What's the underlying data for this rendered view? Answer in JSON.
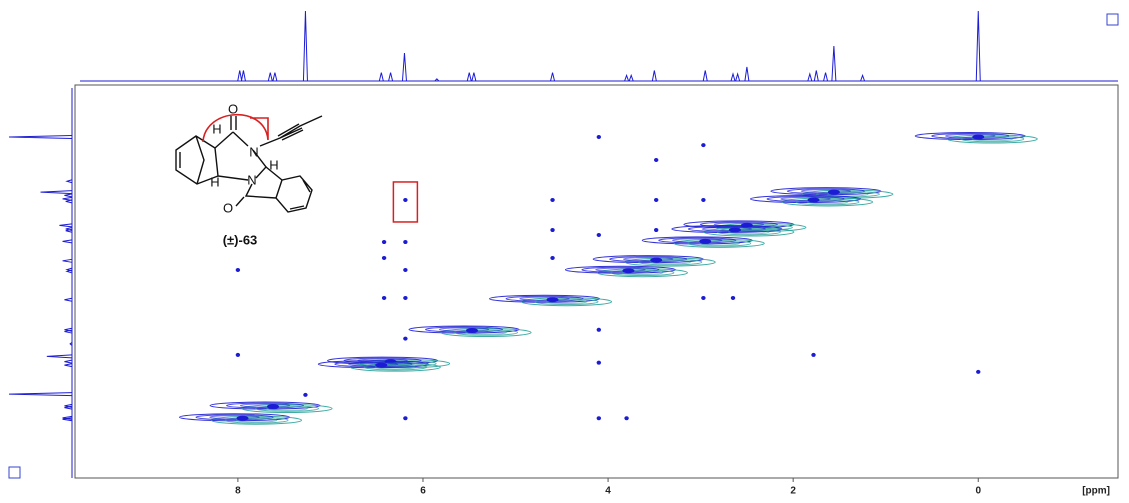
{
  "chart_data": {
    "type": "nmr2d",
    "xlim": [
      9.76,
      -1.51
    ],
    "ylim": [
      -1.47,
      9.64
    ],
    "xticks": [
      8,
      6,
      4,
      2,
      0
    ],
    "x_label": "[ppm]",
    "color": "#1c1cd4",
    "color2": "#2aa39c",
    "highlight_color": "#d92020",
    "diagonal": [
      0,
      1.56,
      1.78,
      2.5,
      2.63,
      2.95,
      3.48,
      3.78,
      4.6,
      5.47,
      6.35,
      6.45,
      7.62,
      7.95
    ],
    "cross_peaks": {
      "x": [
        6.19,
        4.1,
        2.97,
        3.48,
        4.6,
        3.48,
        2.97,
        4.6,
        4.1,
        3.48,
        6.42,
        6.19,
        8.0,
        6.42,
        6.19,
        4.6,
        6.42,
        6.19,
        4.1,
        2.97,
        2.65,
        8.0,
        4.1,
        1.78,
        6.19,
        6.19,
        4.1,
        3.8,
        7.27,
        0
      ],
      "y": [
        1.78,
        0,
        0.23,
        0.65,
        1.78,
        1.78,
        1.78,
        2.63,
        2.77,
        2.63,
        2.97,
        2.97,
        3.76,
        3.42,
        3.76,
        3.42,
        4.55,
        4.55,
        5.45,
        4.55,
        4.55,
        6.16,
        6.38,
        6.16,
        5.7,
        7.95,
        7.95,
        7.95,
        7.29,
        6.64
      ]
    },
    "highlight": {
      "x": 6.19,
      "y": 1.78
    },
    "projection": {
      "ppm": [
        7.98,
        7.94,
        7.65,
        7.6,
        7.27,
        6.45,
        6.35,
        6.2,
        5.85,
        5.5,
        5.45,
        4.6,
        3.8,
        3.75,
        3.5,
        2.95,
        2.65,
        2.6,
        2.5,
        1.82,
        1.75,
        1.65,
        1.56,
        1.25,
        0
      ],
      "intensity": [
        15,
        15,
        12,
        12,
        100,
        12,
        12,
        40,
        3,
        12,
        12,
        12,
        8,
        8,
        15,
        15,
        10,
        10,
        20,
        10,
        15,
        12,
        50,
        8,
        100
      ]
    }
  },
  "structure": {
    "label": "(±)-63",
    "atoms": [
      "O",
      "H",
      "N",
      "H",
      "H",
      "N",
      "O"
    ]
  }
}
